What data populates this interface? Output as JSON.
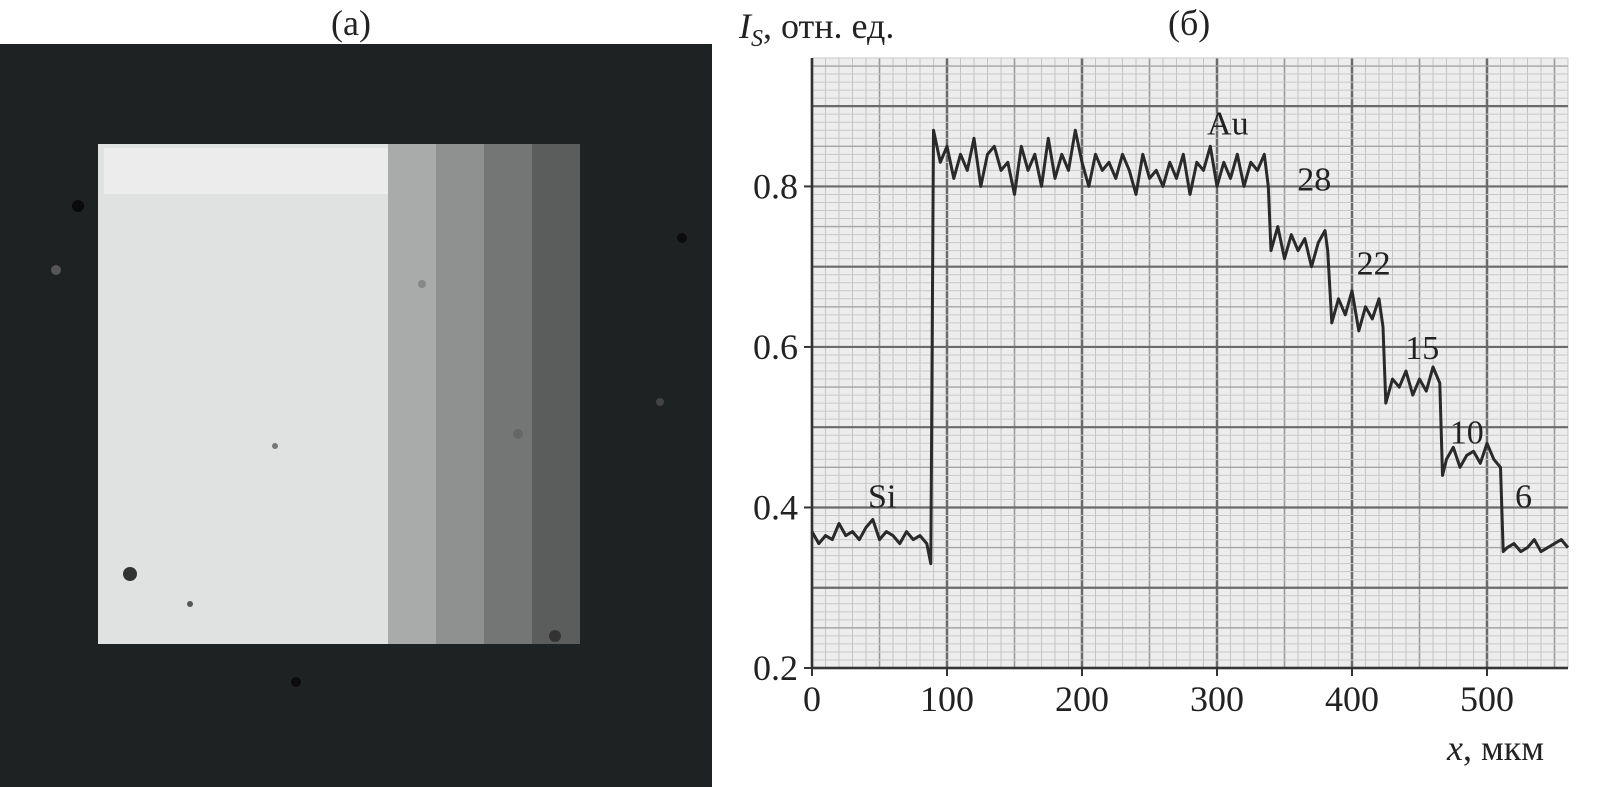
{
  "panels": {
    "a": {
      "label": "(a)"
    },
    "b": {
      "label": "(б)"
    }
  },
  "photo": {
    "colors": {
      "background": "#1f2223",
      "au_pad": "#e0e2e2",
      "strip_28": "#a9abab",
      "strip_22": "#8f9191",
      "strip_15": "#747676",
      "strip_10": "#5b5d5d"
    }
  },
  "chart_data": {
    "type": "line",
    "ylabel_main": "I",
    "ylabel_sub": "S",
    "ylabel_rest": ", отн. ед.",
    "xlabel_var": "x",
    "xlabel_unit": ", мкм",
    "xlim": [
      0,
      560
    ],
    "ylim": [
      0.2,
      0.96
    ],
    "xticks": [
      0,
      100,
      200,
      300,
      400,
      500
    ],
    "yticks": [
      0.2,
      0.4,
      0.6,
      0.8
    ],
    "ytick_labels": [
      "0.2",
      "0.4",
      "0.6",
      "0.8"
    ],
    "grid": true,
    "series": [
      {
        "x": [
          0,
          5,
          10,
          15,
          20,
          25,
          30,
          35,
          40,
          45,
          50,
          55,
          60,
          65,
          70,
          75,
          80,
          85,
          88,
          90,
          95,
          100,
          105,
          110,
          115,
          120,
          125,
          130,
          135,
          140,
          145,
          150,
          155,
          160,
          165,
          170,
          175,
          180,
          185,
          190,
          195,
          200,
          205,
          210,
          215,
          220,
          225,
          230,
          235,
          240,
          245,
          250,
          255,
          260,
          265,
          270,
          275,
          280,
          285,
          290,
          295,
          300,
          305,
          310,
          315,
          320,
          325,
          330,
          335,
          338,
          340,
          345,
          350,
          355,
          360,
          365,
          370,
          375,
          380,
          382,
          385,
          390,
          395,
          400,
          405,
          410,
          415,
          420,
          423,
          425,
          430,
          435,
          440,
          445,
          450,
          455,
          460,
          465,
          467,
          470,
          475,
          480,
          485,
          490,
          495,
          500,
          505,
          510,
          512,
          515,
          520,
          525,
          530,
          535,
          540,
          545,
          550,
          555,
          560
        ],
        "y": [
          0.37,
          0.355,
          0.365,
          0.36,
          0.38,
          0.365,
          0.37,
          0.36,
          0.375,
          0.385,
          0.36,
          0.37,
          0.365,
          0.355,
          0.37,
          0.36,
          0.365,
          0.355,
          0.33,
          0.87,
          0.83,
          0.85,
          0.81,
          0.84,
          0.82,
          0.86,
          0.8,
          0.84,
          0.85,
          0.82,
          0.83,
          0.79,
          0.85,
          0.82,
          0.84,
          0.8,
          0.86,
          0.81,
          0.84,
          0.82,
          0.87,
          0.83,
          0.8,
          0.84,
          0.82,
          0.83,
          0.81,
          0.84,
          0.82,
          0.79,
          0.84,
          0.81,
          0.82,
          0.8,
          0.83,
          0.81,
          0.84,
          0.79,
          0.83,
          0.82,
          0.85,
          0.8,
          0.83,
          0.81,
          0.84,
          0.8,
          0.83,
          0.82,
          0.84,
          0.8,
          0.72,
          0.75,
          0.71,
          0.74,
          0.72,
          0.735,
          0.7,
          0.73,
          0.745,
          0.72,
          0.63,
          0.66,
          0.64,
          0.67,
          0.62,
          0.65,
          0.635,
          0.66,
          0.625,
          0.53,
          0.56,
          0.55,
          0.57,
          0.54,
          0.56,
          0.545,
          0.575,
          0.555,
          0.44,
          0.46,
          0.475,
          0.45,
          0.465,
          0.47,
          0.455,
          0.48,
          0.46,
          0.45,
          0.345,
          0.35,
          0.355,
          0.345,
          0.35,
          0.36,
          0.345,
          0.35,
          0.355,
          0.36,
          0.35
        ]
      }
    ],
    "annotations": [
      {
        "text": "Si",
        "x": 52,
        "y": 0.4
      },
      {
        "text": "Au",
        "x": 308,
        "y": 0.865
      },
      {
        "text": "28",
        "x": 372,
        "y": 0.795
      },
      {
        "text": "22",
        "x": 416,
        "y": 0.69
      },
      {
        "text": "15",
        "x": 452,
        "y": 0.585
      },
      {
        "text": "10",
        "x": 485,
        "y": 0.48
      },
      {
        "text": "6",
        "x": 527,
        "y": 0.4
      }
    ]
  }
}
